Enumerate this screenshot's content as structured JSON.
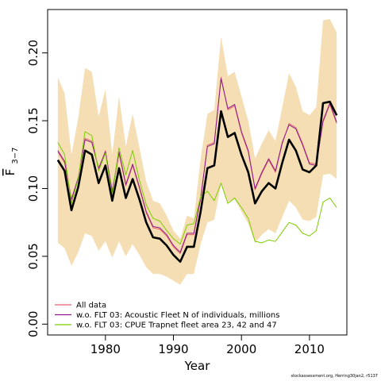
{
  "chart_data": {
    "type": "line",
    "xlabel": "Year",
    "ylabel_main": "F",
    "ylabel_sub": "3−7",
    "xlim": [
      1971.5,
      2015.5
    ],
    "ylim": [
      -0.008,
      0.232
    ],
    "xticks": [
      1980,
      1990,
      2000,
      2010
    ],
    "yticks": [
      "0.00",
      "0.05",
      "0.10",
      "0.15",
      "0.20"
    ],
    "grid": false,
    "legend_position": "bottom-left",
    "x": [
      1973,
      1974,
      1975,
      1976,
      1977,
      1978,
      1979,
      1980,
      1981,
      1982,
      1983,
      1984,
      1985,
      1986,
      1987,
      1988,
      1989,
      1990,
      1991,
      1992,
      1993,
      1994,
      1995,
      1996,
      1997,
      1998,
      1999,
      2000,
      2001,
      2002,
      2003,
      2004,
      2005,
      2006,
      2007,
      2008,
      2009,
      2010,
      2011,
      2012,
      2013,
      2014
    ],
    "band": {
      "color": "#f5deb3",
      "upper": [
        0.182,
        0.17,
        0.125,
        0.152,
        0.189,
        0.186,
        0.153,
        0.173,
        0.125,
        0.168,
        0.131,
        0.155,
        0.13,
        0.105,
        0.091,
        0.089,
        0.08,
        0.069,
        0.063,
        0.08,
        0.078,
        0.122,
        0.155,
        0.158,
        0.212,
        0.183,
        0.186,
        0.168,
        0.15,
        0.122,
        0.133,
        0.143,
        0.135,
        0.16,
        0.185,
        0.175,
        0.157,
        0.154,
        0.16,
        0.224,
        0.225,
        0.215
      ],
      "lower": [
        0.06,
        0.056,
        0.043,
        0.053,
        0.067,
        0.065,
        0.054,
        0.061,
        0.049,
        0.061,
        0.05,
        0.059,
        0.051,
        0.042,
        0.037,
        0.037,
        0.035,
        0.032,
        0.029,
        0.037,
        0.037,
        0.059,
        0.075,
        0.077,
        0.103,
        0.09,
        0.092,
        0.083,
        0.074,
        0.06,
        0.066,
        0.07,
        0.067,
        0.079,
        0.091,
        0.086,
        0.077,
        0.076,
        0.079,
        0.11,
        0.111,
        0.107
      ]
    },
    "series": [
      {
        "name": "All data",
        "color": "#e4626b",
        "width": 1,
        "values": [
          0.127,
          0.119,
          0.091,
          0.107,
          0.137,
          0.135,
          0.114,
          0.128,
          0.097,
          0.126,
          0.102,
          0.117,
          0.1,
          0.082,
          0.071,
          0.07,
          0.065,
          0.057,
          0.052,
          0.066,
          0.066,
          0.092,
          0.132,
          0.134,
          0.182,
          0.158,
          0.161,
          0.141,
          0.127,
          0.099,
          0.111,
          0.121,
          0.112,
          0.133,
          0.148,
          0.145,
          0.133,
          0.119,
          0.118,
          0.149,
          0.162,
          0.148
        ]
      },
      {
        "name": "w.o. FLT 03: Acoustic Fleet   N of individuals, millions",
        "color": "#8b1a8b",
        "width": 1,
        "values": [
          0.128,
          0.12,
          0.092,
          0.108,
          0.136,
          0.134,
          0.115,
          0.127,
          0.098,
          0.127,
          0.103,
          0.118,
          0.101,
          0.083,
          0.072,
          0.071,
          0.066,
          0.058,
          0.053,
          0.067,
          0.067,
          0.093,
          0.131,
          0.133,
          0.181,
          0.159,
          0.162,
          0.142,
          0.128,
          0.1,
          0.112,
          0.122,
          0.113,
          0.134,
          0.147,
          0.144,
          0.132,
          0.118,
          0.117,
          0.15,
          0.163,
          0.149
        ]
      },
      {
        "name": "w.o. FLT 03: CPUE Trapnet fleet area 23, 42 and 47",
        "color": "#7ccd00",
        "width": 1,
        "values": [
          0.134,
          0.125,
          0.089,
          0.107,
          0.142,
          0.139,
          0.113,
          0.126,
          0.095,
          0.13,
          0.11,
          0.128,
          0.106,
          0.088,
          0.078,
          0.076,
          0.069,
          0.063,
          0.059,
          0.073,
          0.074,
          0.094,
          0.098,
          0.091,
          0.104,
          0.089,
          0.093,
          0.086,
          0.078,
          0.061,
          0.06,
          0.062,
          0.061,
          0.068,
          0.075,
          0.073,
          0.067,
          0.065,
          0.069,
          0.09,
          0.093,
          0.086
        ]
      },
      {
        "name": "",
        "color": "#000000",
        "width": 2.6,
        "values": [
          0.121,
          0.113,
          0.084,
          0.101,
          0.128,
          0.125,
          0.104,
          0.117,
          0.091,
          0.115,
          0.093,
          0.107,
          0.092,
          0.075,
          0.064,
          0.063,
          0.058,
          0.051,
          0.046,
          0.057,
          0.057,
          0.083,
          0.115,
          0.117,
          0.157,
          0.138,
          0.141,
          0.125,
          0.112,
          0.089,
          0.098,
          0.104,
          0.1,
          0.119,
          0.136,
          0.128,
          0.114,
          0.112,
          0.117,
          0.163,
          0.164,
          0.154
        ]
      }
    ],
    "legend": [
      {
        "label": "All data",
        "color": "#e4626b"
      },
      {
        "label": "w.o. FLT 03: Acoustic Fleet   N of individuals, millions",
        "color": "#8b1a8b"
      },
      {
        "label": "w.o. FLT 03: CPUE Trapnet fleet area 23, 42 and 47",
        "color": "#7ccd00"
      }
    ]
  },
  "footnote": "stockassessment.org,  Herring30jan2, r5137"
}
